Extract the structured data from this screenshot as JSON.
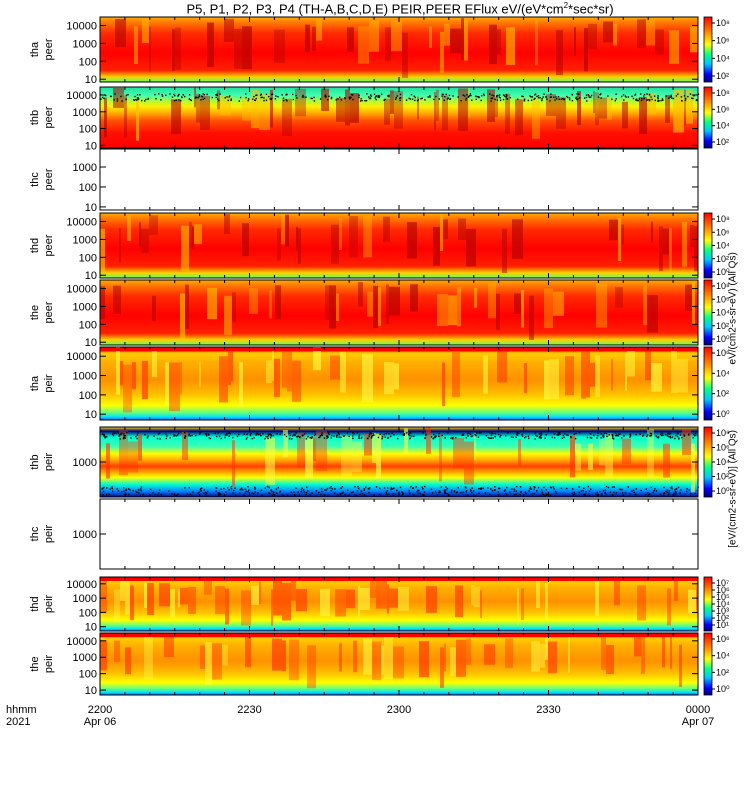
{
  "title": {
    "prefix": "P5, P1, P2, P3, P4 (TH-A,B,C,D,E) PEIR,PEER EFlux eV/(eV*cm",
    "sup": "2",
    "suffix": "*sec*sr)"
  },
  "side_label": {
    "lower": "[eV/(cm2-s-sr-eV)] (All Qs)",
    "upper": "eV/(cm2-s-sr-eV) (All Qs)"
  },
  "colors": {
    "saturated": "#ff0000",
    "high": "#ff8c00",
    "mid": "#ffff00",
    "low": "#00ffaa",
    "lowest": "#0000ff",
    "floor": "#000080"
  },
  "chart_data": {
    "type": "heatmap",
    "time_axis": {
      "row_label": [
        "hhmm",
        "2021"
      ],
      "ticks": [
        {
          "value": "2200",
          "date": "Apr 06"
        },
        {
          "value": "2230",
          "date": ""
        },
        {
          "value": "2300",
          "date": ""
        },
        {
          "value": "2330",
          "date": ""
        },
        {
          "value": "0000",
          "date": "Apr 07"
        }
      ],
      "range": [
        "2021-04-06 22:00",
        "2021-04-07 00:00"
      ]
    },
    "y_scale": "log",
    "colorbar_scale": "log",
    "panels": [
      {
        "probe": "tha",
        "instrument": "peer",
        "label": [
          "tha",
          "peer"
        ],
        "yticks": [
          "10",
          "100",
          "1000",
          "10000"
        ],
        "ylim": [
          7,
          30000
        ],
        "colorbar_ticks": [
          "10⁸",
          "10⁶",
          "10⁴",
          "10²"
        ],
        "data_state": "filled",
        "band": "electron-a"
      },
      {
        "probe": "thb",
        "instrument": "peer",
        "label": [
          "thb",
          "peer"
        ],
        "yticks": [
          "10",
          "100",
          "1000",
          "10000"
        ],
        "ylim": [
          7,
          30000
        ],
        "colorbar_ticks": [
          "10⁸",
          "10⁶",
          "10⁴",
          "10²"
        ],
        "data_state": "filled",
        "band": "electron-b"
      },
      {
        "probe": "thc",
        "instrument": "peer",
        "label": [
          "thc",
          "peer"
        ],
        "yticks": [
          "10",
          "100",
          "1000"
        ],
        "ylim": [
          7,
          8000
        ],
        "colorbar_ticks": [],
        "data_state": "empty",
        "band": "none"
      },
      {
        "probe": "thd",
        "instrument": "peer",
        "label": [
          "thd",
          "peer"
        ],
        "yticks": [
          "10",
          "100",
          "1000",
          "10000"
        ],
        "ylim": [
          7,
          30000
        ],
        "colorbar_ticks": [
          "10⁸",
          "10⁶",
          "10⁴",
          "10²",
          "10⁰"
        ],
        "data_state": "filled",
        "band": "electron-a"
      },
      {
        "probe": "the",
        "instrument": "peer",
        "label": [
          "the",
          "peer"
        ],
        "yticks": [
          "10",
          "100",
          "1000",
          "10000"
        ],
        "ylim": [
          7,
          30000
        ],
        "colorbar_ticks": [
          "10⁸",
          "10⁶",
          "10⁴",
          "10²",
          "10⁰"
        ],
        "data_state": "filled",
        "band": "electron-a"
      },
      {
        "probe": "tha",
        "instrument": "peir",
        "label": [
          "tha",
          "peir"
        ],
        "yticks": [
          "10",
          "100",
          "1000",
          "10000"
        ],
        "ylim": [
          5,
          30000
        ],
        "colorbar_ticks": [
          "10⁶",
          "10⁴",
          "10²",
          "10⁰"
        ],
        "data_state": "filled",
        "band": "ion-a"
      },
      {
        "probe": "thb",
        "instrument": "peir",
        "label": [
          "thb",
          "peir"
        ],
        "yticks": [
          "1000"
        ],
        "ylim": [
          50,
          20000
        ],
        "colorbar_ticks": [
          "10⁸",
          "10⁶",
          "10⁴",
          "10²",
          "10⁰"
        ],
        "data_state": "filled",
        "band": "ion-b"
      },
      {
        "probe": "thc",
        "instrument": "peir",
        "label": [
          "thc",
          "peir"
        ],
        "yticks": [
          "1000"
        ],
        "ylim": [
          50,
          20000
        ],
        "colorbar_ticks": [],
        "data_state": "empty",
        "band": "none"
      },
      {
        "probe": "thd",
        "instrument": "peir",
        "label": [
          "thd",
          "peir"
        ],
        "yticks": [
          "10",
          "100",
          "1000",
          "10000"
        ],
        "ylim": [
          5,
          30000
        ],
        "colorbar_ticks": [
          "10⁷",
          "10⁶",
          "10⁵",
          "10⁴",
          "10³",
          "10²",
          "10¹"
        ],
        "data_state": "filled",
        "band": "ion-a"
      },
      {
        "probe": "the",
        "instrument": "peir",
        "label": [
          "the",
          "peir"
        ],
        "yticks": [
          "10",
          "100",
          "1000",
          "10000"
        ],
        "ylim": [
          5,
          30000
        ],
        "colorbar_ticks": [
          "10⁶",
          "10⁴",
          "10²",
          "10⁰"
        ],
        "data_state": "filled",
        "band": "ion-a"
      }
    ]
  }
}
